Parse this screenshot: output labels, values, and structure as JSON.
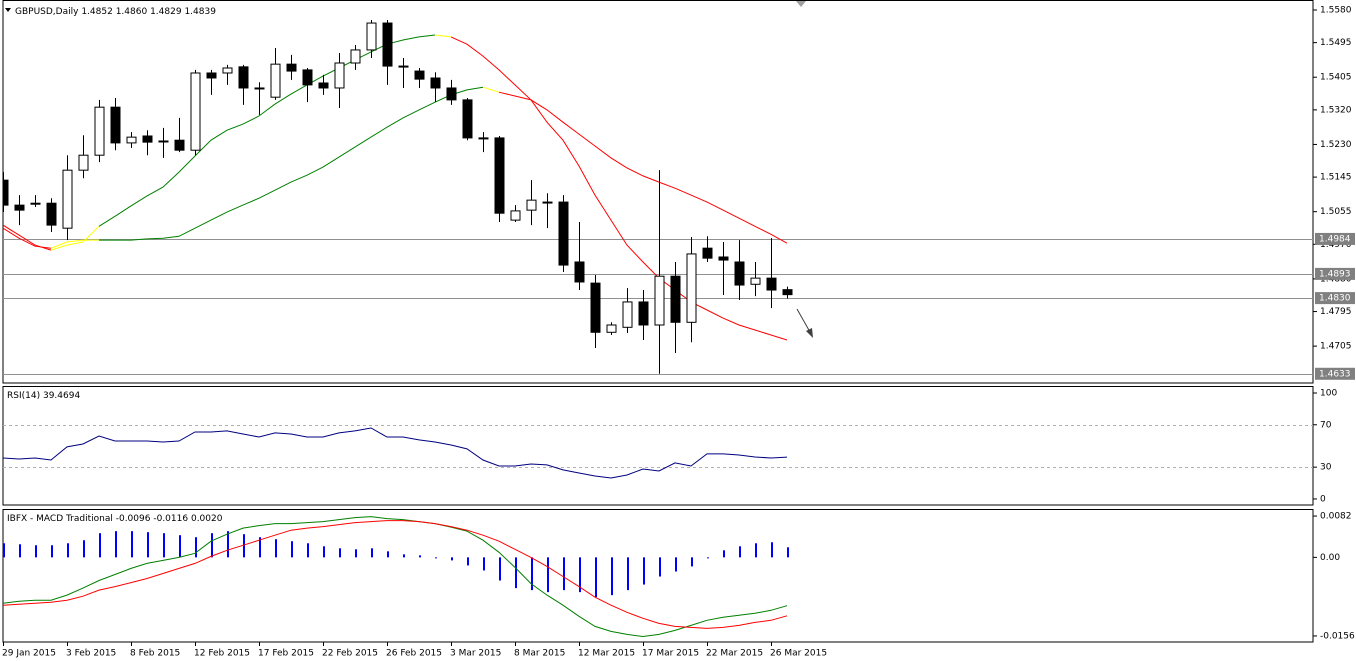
{
  "chart_data": [
    {
      "type": "candlestick",
      "title": "GBPUSD,Daily",
      "header_labels": [
        "1.4852",
        "1.4860",
        "1.4829",
        "1.4839"
      ],
      "categories": [
        "29 Jan 2015",
        null,
        null,
        null,
        "3 Feb 2015",
        null,
        null,
        null,
        "8 Feb 2015",
        null,
        null,
        null,
        "12 Feb 2015",
        null,
        null,
        null,
        "17 Feb 2015",
        null,
        null,
        null,
        "22 Feb 2015",
        null,
        null,
        null,
        "26 Feb 2015",
        null,
        null,
        null,
        "3 Mar 2015",
        null,
        null,
        null,
        "8 Mar 2015",
        null,
        null,
        null,
        "12 Mar 2015",
        null,
        null,
        null,
        "17 Mar 2015",
        null,
        null,
        null,
        "22 Mar 2015",
        null,
        null,
        null,
        "26 Mar 2015",
        null
      ],
      "open": [
        1.5137,
        1.5072,
        1.5077,
        1.5077,
        1.5012,
        1.5163,
        1.5202,
        1.5327,
        1.5234,
        1.5252,
        1.5239,
        1.5241,
        1.5215,
        1.5416,
        1.5416,
        1.5432,
        1.5377,
        1.5353,
        1.5439,
        1.5424,
        1.539,
        1.5377,
        1.5442,
        1.5476,
        1.5546,
        1.5434,
        1.5421,
        1.5403,
        1.5377,
        1.5346,
        1.5247,
        1.5247,
        1.5033,
        1.5059,
        1.508,
        1.508,
        1.4924,
        1.4869,
        1.4741,
        1.4754,
        1.482,
        1.476,
        1.4887,
        1.4767,
        1.496,
        1.4937,
        1.4924,
        1.4866,
        1.4882,
        1.4852
      ],
      "high": [
        1.5158,
        1.5098,
        1.5098,
        1.509,
        1.5202,
        1.5254,
        1.5346,
        1.5351,
        1.5262,
        1.5267,
        1.5273,
        1.5299,
        1.5424,
        1.5424,
        1.5437,
        1.5437,
        1.5392,
        1.5481,
        1.5463,
        1.5429,
        1.5411,
        1.5468,
        1.5489,
        1.5554,
        1.5554,
        1.5455,
        1.5429,
        1.5418,
        1.5398,
        1.5351,
        1.5262,
        1.5252,
        1.5072,
        1.5137,
        1.5103,
        1.5098,
        1.5028,
        1.489,
        1.4767,
        1.4856,
        1.4851,
        1.5163,
        1.4924,
        1.4989,
        1.4991,
        1.4976,
        1.4981,
        1.4924,
        1.4986,
        1.486
      ],
      "low": [
        1.5054,
        1.502,
        1.5067,
        1.5002,
        1.4981,
        1.5142,
        1.5184,
        1.5215,
        1.5221,
        1.5202,
        1.5195,
        1.521,
        1.5202,
        1.5359,
        1.5385,
        1.5333,
        1.5307,
        1.5346,
        1.5398,
        1.534,
        1.5359,
        1.5325,
        1.5424,
        1.5455,
        1.5385,
        1.5377,
        1.5377,
        1.534,
        1.5333,
        1.5241,
        1.521,
        1.5028,
        1.5028,
        1.502,
        1.5012,
        1.4898,
        1.4851,
        1.47,
        1.4734,
        1.4739,
        1.4721,
        1.4633,
        1.4687,
        1.4715,
        1.4924,
        1.4838,
        1.4825,
        1.4835,
        1.4804,
        1.4829
      ],
      "close": [
        1.5072,
        1.5059,
        1.5075,
        1.502,
        1.5163,
        1.5202,
        1.5327,
        1.5234,
        1.5249,
        1.5236,
        1.5237,
        1.5215,
        1.5416,
        1.5403,
        1.5429,
        1.5377,
        1.5375,
        1.5439,
        1.5421,
        1.5385,
        1.5377,
        1.5442,
        1.5476,
        1.5546,
        1.5434,
        1.5432,
        1.54,
        1.5377,
        1.5346,
        1.5247,
        1.5245,
        1.5051,
        1.5057,
        1.5085,
        1.5078,
        1.4916,
        1.4872,
        1.4741,
        1.476,
        1.482,
        1.476,
        1.4887,
        1.4767,
        1.4945,
        1.4934,
        1.4929,
        1.4864,
        1.4882,
        1.4851,
        1.4839
      ],
      "up_color": "#ffffff",
      "down_color": "#000000",
      "overlays": [
        {
          "values": [
            1.502,
            1.4994,
            1.4968,
            1.4955,
            1.4968,
            1.4976,
            1.5017,
            1.5043,
            1.507,
            1.5096,
            1.5119,
            1.5158,
            1.52,
            1.5241,
            1.5267,
            1.5283,
            1.5304,
            1.5335,
            1.5361,
            1.5385,
            1.5408,
            1.5429,
            1.545,
            1.5471,
            1.5491,
            1.5502,
            1.551,
            1.5515,
            1.551,
            1.5491,
            1.546,
            1.5424,
            1.5385,
            1.5346,
            1.5288,
            1.5241,
            1.5174,
            1.5098,
            1.5033,
            1.4968,
            1.4924,
            1.4882,
            1.4851,
            1.482,
            1.4799,
            1.4778,
            1.476,
            1.4747,
            1.4734,
            1.4721
          ],
          "colors": [
            "red",
            "red",
            "red",
            "yellow",
            "yellow",
            "yellow",
            "green",
            "green",
            "green",
            "green",
            "green",
            "green",
            "green",
            "green",
            "green",
            "green",
            "green",
            "green",
            "green",
            "green",
            "green",
            "green",
            "green",
            "green",
            "green",
            "green",
            "green",
            "yellow",
            "red",
            "red",
            "red",
            "red",
            "red",
            "red",
            "red",
            "red",
            "red",
            "red",
            "red",
            "red",
            "red",
            "red",
            "red",
            "red",
            "red",
            "red",
            "red",
            "red",
            "red",
            "red"
          ]
        },
        {
          "values": [
            1.5012,
            1.4986,
            1.4965,
            1.496,
            1.4976,
            1.4981,
            1.4981,
            1.4981,
            1.4981,
            1.4984,
            1.4986,
            1.4991,
            1.5012,
            1.5033,
            1.5054,
            1.5072,
            1.509,
            1.5111,
            1.5132,
            1.515,
            1.5171,
            1.5197,
            1.5223,
            1.5249,
            1.5275,
            1.5299,
            1.532,
            1.534,
            1.5359,
            1.5372,
            1.5379,
            1.5366,
            1.5356,
            1.5346,
            1.532,
            1.5288,
            1.5257,
            1.5226,
            1.5195,
            1.5169,
            1.5148,
            1.5132,
            1.5116,
            1.5098,
            1.508,
            1.5059,
            1.5038,
            1.5017,
            1.4996,
            1.4973
          ],
          "colors": [
            "red",
            "red",
            "red",
            "yellow",
            "yellow",
            "yellow",
            "green",
            "green",
            "green",
            "green",
            "green",
            "green",
            "green",
            "green",
            "green",
            "green",
            "green",
            "green",
            "green",
            "green",
            "green",
            "green",
            "green",
            "green",
            "green",
            "green",
            "green",
            "green",
            "green",
            "green",
            "yellow",
            "red",
            "red",
            "red",
            "red",
            "red",
            "red",
            "red",
            "red",
            "red",
            "red",
            "red",
            "red",
            "red",
            "red",
            "red",
            "red",
            "red",
            "red",
            "red"
          ]
        }
      ],
      "levels": [
        1.4984,
        1.4893,
        {
          "value": 1.483,
          "label": "1.4830"
        },
        1.4633
      ],
      "ylim": [
        1.4609,
        1.5606
      ],
      "yticks": [
        {
          "value": 1.558,
          "label": "1.5580"
        },
        1.5495,
        1.5405,
        {
          "value": 1.532,
          "label": "1.5320"
        },
        {
          "value": 1.523,
          "label": "1.5230"
        },
        1.5145,
        1.5055,
        {
          "value": 1.497,
          "label": "1.4970"
        },
        {
          "value": 1.488,
          "label": "1.4880"
        },
        1.4795,
        1.4705
      ]
    },
    {
      "type": "line",
      "title": "RSI(14)",
      "series": [
        {
          "color": "#000080",
          "values": [
            38.7,
            37.7,
            38.7,
            36.8,
            49.1,
            51.9,
            59.4,
            54.7,
            54.7,
            54.7,
            53.8,
            54.7,
            63.2,
            63.2,
            64.2,
            61.3,
            58.5,
            62.3,
            61.3,
            58.5,
            58.5,
            62.3,
            64.2,
            67.0,
            58.5,
            58.5,
            55.7,
            53.8,
            50.9,
            47.2,
            36.8,
            31.1,
            31.1,
            33.0,
            32.1,
            27.4,
            24.5,
            21.7,
            19.8,
            22.6,
            28.3,
            26.4,
            34.0,
            31.1,
            42.5,
            42.5,
            41.5,
            39.6,
            38.7,
            39.4694
          ]
        }
      ],
      "levels": [
        70,
        30
      ],
      "ylim": [
        -5.7,
        106.6
      ],
      "yticks": [
        100,
        70,
        30,
        0
      ]
    },
    {
      "type": "macd",
      "title": "IBFX - MACD Traditional",
      "header_labels": [
        "-0.0096",
        "-0.0116",
        "0.0020"
      ],
      "histogram": {
        "color": "#0000ff",
        "values": [
          0.0028,
          0.0026,
          0.0024,
          0.0024,
          0.0028,
          0.0034,
          0.0048,
          0.0052,
          0.0052,
          0.005,
          0.0048,
          0.0044,
          0.004,
          0.0048,
          0.0052,
          0.0046,
          0.004,
          0.0036,
          0.0032,
          0.0028,
          0.0022,
          0.0018,
          0.0016,
          0.0018,
          0.0012,
          0.0006,
          0.0004,
          0.0,
          -0.0006,
          -0.0016,
          -0.0026,
          -0.0046,
          -0.0061,
          -0.0065,
          -0.0069,
          -0.0065,
          -0.0069,
          -0.0079,
          -0.0075,
          -0.0065,
          -0.0054,
          -0.0038,
          -0.0028,
          -0.0018,
          0.0,
          0.0014,
          0.0022,
          0.0028,
          0.003,
          0.002
        ]
      },
      "series": [
        {
          "color": "#008000",
          "values": [
            -0.0091,
            -0.0087,
            -0.0085,
            -0.0085,
            -0.0075,
            -0.0061,
            -0.0046,
            -0.0034,
            -0.0022,
            -0.0012,
            -0.0006,
            0.0,
            0.0008,
            0.0032,
            0.0046,
            0.0058,
            0.0063,
            0.0067,
            0.0067,
            0.0069,
            0.0071,
            0.0075,
            0.0079,
            0.0081,
            0.0077,
            0.0075,
            0.0071,
            0.0067,
            0.006,
            0.0052,
            0.0034,
            0.001,
            -0.002,
            -0.0052,
            -0.0075,
            -0.0095,
            -0.0117,
            -0.0137,
            -0.0147,
            -0.0153,
            -0.0157,
            -0.0153,
            -0.0145,
            -0.0135,
            -0.0125,
            -0.0119,
            -0.0115,
            -0.0111,
            -0.0105,
            -0.0096
          ]
        },
        {
          "color": "#ff0000",
          "values": [
            -0.0095,
            -0.0093,
            -0.0091,
            -0.0089,
            -0.0085,
            -0.0077,
            -0.0065,
            -0.0058,
            -0.005,
            -0.0042,
            -0.0032,
            -0.0022,
            -0.0012,
            0.0002,
            0.0014,
            0.0024,
            0.0034,
            0.0044,
            0.0054,
            0.0058,
            0.0061,
            0.0065,
            0.0069,
            0.0071,
            0.0073,
            0.0073,
            0.0071,
            0.0067,
            0.0061,
            0.0054,
            0.0044,
            0.0032,
            0.0016,
            0.0,
            -0.0018,
            -0.0038,
            -0.0058,
            -0.0079,
            -0.0095,
            -0.0109,
            -0.0121,
            -0.0131,
            -0.0137,
            -0.0139,
            -0.0141,
            -0.0139,
            -0.0135,
            -0.0129,
            -0.0125,
            -0.0116
          ]
        }
      ],
      "ylim": [
        -0.0168,
        0.0096
      ],
      "yticks": [
        0.0082,
        {
          "value": 0,
          "label": "0.00"
        },
        -0.0156
      ]
    }
  ]
}
